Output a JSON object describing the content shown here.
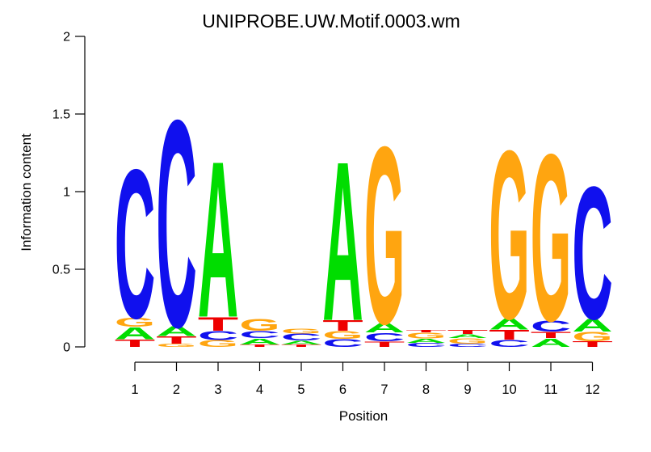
{
  "title": "UNIPROBE.UW.Motif.0003.wm",
  "y_axis": {
    "label": "Information content",
    "tick_labels": [
      "0",
      "0.5",
      "1",
      "1.5",
      "2"
    ],
    "tick_values": [
      0,
      0.5,
      1,
      1.5,
      2
    ]
  },
  "x_axis": {
    "label": "Position",
    "tick_labels": [
      "1",
      "2",
      "3",
      "4",
      "5",
      "6",
      "7",
      "8",
      "9",
      "10",
      "11",
      "12"
    ]
  },
  "base_colors": {
    "A": "#00DD00",
    "C": "#1010EE",
    "G": "#FFA510",
    "T": "#EE0000"
  },
  "chart_data": {
    "type": "bar",
    "subtype": "dna-sequence-logo-stacked-letters",
    "title": "UNIPROBE.UW.Motif.0003.wm",
    "xlabel": "Position",
    "ylabel": "Information content",
    "ylim": [
      0,
      2
    ],
    "xlim": [
      1,
      12
    ],
    "grid": "off",
    "legend": "none",
    "units": "bits",
    "positions": [
      {
        "position": 1,
        "stack": [
          {
            "base": "C",
            "bits": 1.0
          },
          {
            "base": "G",
            "bits": 0.06
          },
          {
            "base": "A",
            "bits": 0.08
          },
          {
            "base": "T",
            "bits": 0.05
          }
        ]
      },
      {
        "position": 2,
        "stack": [
          {
            "base": "C",
            "bits": 1.39
          },
          {
            "base": "A",
            "bits": 0.065
          },
          {
            "base": "T",
            "bits": 0.05
          },
          {
            "base": "G",
            "bits": 0.02
          }
        ]
      },
      {
        "position": 3,
        "stack": [
          {
            "base": "A",
            "bits": 1.05
          },
          {
            "base": "T",
            "bits": 0.09
          },
          {
            "base": "C",
            "bits": 0.06
          },
          {
            "base": "G",
            "bits": 0.045
          }
        ]
      },
      {
        "position": 4,
        "stack": [
          {
            "base": "G",
            "bits": 0.08
          },
          {
            "base": "C",
            "bits": 0.047
          },
          {
            "base": "A",
            "bits": 0.04
          },
          {
            "base": "T",
            "bits": 0.016
          }
        ]
      },
      {
        "position": 5,
        "stack": [
          {
            "base": "G",
            "bits": 0.032
          },
          {
            "base": "C",
            "bits": 0.045
          },
          {
            "base": "A",
            "bits": 0.026
          },
          {
            "base": "T",
            "bits": 0.016
          }
        ]
      },
      {
        "position": 6,
        "stack": [
          {
            "base": "A",
            "bits": 1.07
          },
          {
            "base": "T",
            "bits": 0.07
          },
          {
            "base": "G",
            "bits": 0.052
          },
          {
            "base": "C",
            "bits": 0.052
          }
        ]
      },
      {
        "position": 7,
        "stack": [
          {
            "base": "G",
            "bits": 1.19
          },
          {
            "base": "A",
            "bits": 0.062
          },
          {
            "base": "C",
            "bits": 0.057
          },
          {
            "base": "T",
            "bits": 0.036
          }
        ]
      },
      {
        "position": 8,
        "stack": [
          {
            "base": "T",
            "bits": 0.016
          },
          {
            "base": "G",
            "bits": 0.04
          },
          {
            "base": "A",
            "bits": 0.027
          },
          {
            "base": "C",
            "bits": 0.027
          }
        ]
      },
      {
        "position": 9,
        "stack": [
          {
            "base": "T",
            "bits": 0.027
          },
          {
            "base": "A",
            "bits": 0.026
          },
          {
            "base": "G",
            "bits": 0.036
          },
          {
            "base": "C",
            "bits": 0.021
          }
        ]
      },
      {
        "position": 10,
        "stack": [
          {
            "base": "G",
            "bits": 1.13
          },
          {
            "base": "A",
            "bits": 0.075
          },
          {
            "base": "T",
            "bits": 0.065
          },
          {
            "base": "C",
            "bits": 0.047
          }
        ]
      },
      {
        "position": 11,
        "stack": [
          {
            "base": "G",
            "bits": 1.12
          },
          {
            "base": "C",
            "bits": 0.075
          },
          {
            "base": "T",
            "bits": 0.042
          },
          {
            "base": "A",
            "bits": 0.057
          }
        ]
      },
      {
        "position": 12,
        "stack": [
          {
            "base": "C",
            "bits": 0.89
          },
          {
            "base": "A",
            "bits": 0.085
          },
          {
            "base": "G",
            "bits": 0.062
          },
          {
            "base": "T",
            "bits": 0.037
          }
        ]
      }
    ]
  }
}
